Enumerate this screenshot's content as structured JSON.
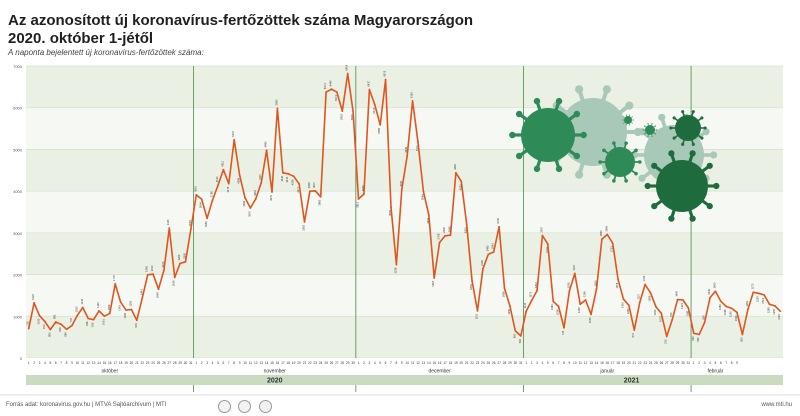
{
  "title_line1": "Az azonosított új koronavírus-fertőzöttek száma Magyarországon",
  "title_line2": "2020. október 1-jétől",
  "subtitle": "A naponta bejelentett új koronavírus-fertőzöttek száma:",
  "footer": {
    "source": "Forrás adat: koronavirus.gov.hu | MTVA Sajtóarchívum | MTI",
    "site": "www.mti.hu"
  },
  "colors": {
    "line": "#e05520",
    "band_light": "#eaf1e4",
    "band_dark": "#c9dcc0",
    "axis_green": "#4a8a4a",
    "virus_dark": "#2e8b57",
    "virus_light": "#a8c8b8"
  },
  "decoration": {
    "virus_icons": "coronavirus-illustration"
  },
  "chart_data": {
    "type": "line",
    "title": "Az azonosított új koronavírus-fertőzöttek száma Magyarországon 2020. október 1-jétől",
    "subtitle": "A naponta bejelentett új koronavírus-fertőzöttek száma:",
    "ylim": [
      0,
      7000
    ],
    "yticks": [
      0,
      1000,
      2000,
      3000,
      4000,
      5000,
      6000,
      7000
    ],
    "grid": true,
    "x_start_date": "2020-10-01",
    "months": [
      {
        "label": "október",
        "days": 31
      },
      {
        "label": "november",
        "days": 30
      },
      {
        "label": "december",
        "days": 31
      },
      {
        "label": "január",
        "days": 31
      },
      {
        "label": "február",
        "days": 9
      }
    ],
    "years": [
      {
        "label": "2020",
        "months": 3
      },
      {
        "label": "2021",
        "months": 2
      }
    ],
    "series": [
      {
        "values": [
          705,
          1322,
          1015,
          873,
          680,
          863,
          809,
          689,
          778,
          1023,
          1210,
          948,
          919,
          1130,
          1001,
          1069,
          1776,
          1341,
          1148,
          1163,
          904,
          1441,
          1995,
          2010,
          1649,
          2100,
          3115,
          1929,
          2269,
          2305,
          3093,
          3910,
          3804,
          3350,
          3786,
          4140,
          4515,
          4178,
          5231,
          4389,
          3844,
          3597,
          3816,
          4197,
          4980,
          3979,
          5983,
          4440,
          4415,
          4356,
          4177,
          3263,
          3998,
          4007,
          3865,
          6374,
          6445,
          6374,
          5918,
          6819,
          5909,
          3812,
          3930,
          6437,
          6072,
          5589,
          6676,
          3618,
          2238,
          4041,
          4849,
          6162,
          5171,
          3994,
          3431,
          1918,
          2768,
          2930,
          2945,
          4440,
          4233,
          3202,
          1844,
          1131,
          2136,
          2485,
          2542,
          3145,
          1669,
          1250,
          650,
          530,
          1121,
          1375,
          1612,
          2937,
          2731,
          1360,
          1234,
          725,
          1605,
          2027,
          1290,
          1390,
          1045,
          1650,
          2850,
          2960,
          2751,
          1876,
          1410,
          1260,
          670,
          1327,
          1763,
          1563,
          1230,
          1075,
          515,
          915,
          1400,
          1391,
          1198,
          590,
          565,
          850,
          1443,
          1600,
          1360,
          1236,
          1190,
          1093,
          563,
          1162,
          1575,
          1550,
          1513,
          1288,
          1250,
          1123
        ]
      }
    ]
  }
}
